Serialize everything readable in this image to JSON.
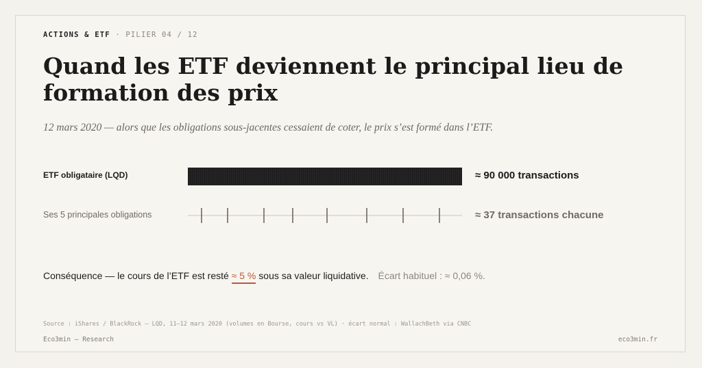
{
  "header": {
    "category": "ACTIONS & ETF",
    "separator": "·",
    "pillar": "PILIER 04 / 12"
  },
  "title": "Quand les ETF deviennent le principal lieu de formation des prix",
  "subtitle": "12 mars 2020 — alors que les obligations sous-jacentes cessaient de coter, le prix s’est formé dans l’ETF.",
  "chart_data": {
    "type": "bar",
    "categories": [
      "ETF obligataire (LQD)",
      "Ses 5 principales obligations"
    ],
    "values": [
      90000,
      37
    ],
    "value_labels": [
      "≈ 90 000 transactions",
      "≈ 37 transactions chacune"
    ],
    "bond_tick_count": 8,
    "colors": {
      "etf_bar": "#1c1c1c",
      "bond_ticks": "#7a776f",
      "axis": "#c8c5bd"
    }
  },
  "conclusion": {
    "prefix": "Conséquence — le cours de l’ETF est resté",
    "highlight": "≈ 5 %",
    "suffix": "sous sa valeur liquidative.",
    "normal_gap": "Écart habituel : ≈ 0,06 %."
  },
  "source": "Source : iShares / BlackRock — LQD, 11–12 mars 2020 (volumes en Bourse, cours vs VL) · écart normal : WallachBeth via CNBC",
  "footer": {
    "left": "Eco3min — Research",
    "right": "eco3min.fr"
  },
  "colors": {
    "accent": "#c0563a",
    "background": "#f7f5ef",
    "text": "#1b1b1b",
    "muted": "#8a877f"
  }
}
